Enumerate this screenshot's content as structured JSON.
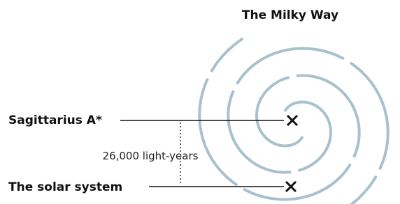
{
  "title": "The Milky Way",
  "labels": {
    "sagittarius": "Sagittarius A*",
    "solar_system": "The solar system"
  },
  "distance": "26,000 light-years"
}
